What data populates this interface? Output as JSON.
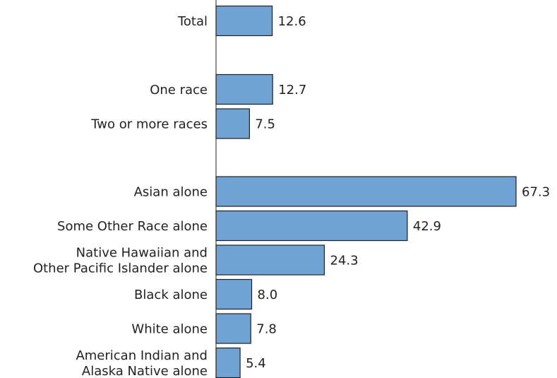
{
  "colors": {
    "bar_fill": "#6fa3d4",
    "bar_stroke": "#231f20",
    "text": "#231f20"
  },
  "chart_data": {
    "type": "bar",
    "orientation": "horizontal",
    "title": "",
    "xlabel": "",
    "ylabel": "",
    "xlim": [
      0,
      67.3
    ],
    "grid": false,
    "value_labels": true,
    "categories": [
      [
        "Total"
      ],
      [
        "One race"
      ],
      [
        "Two or more races"
      ],
      [
        "Asian alone"
      ],
      [
        "Some Other Race alone"
      ],
      [
        "Native Hawaiian and",
        "Other Pacific Islander alone"
      ],
      [
        "Black alone"
      ],
      [
        "White alone"
      ],
      [
        "American Indian and",
        "Alaska Native alone"
      ]
    ],
    "values": [
      12.6,
      12.7,
      7.5,
      67.3,
      42.9,
      24.3,
      8.0,
      7.8,
      5.4
    ],
    "value_labels_text": [
      "12.6",
      "12.7",
      "7.5",
      "67.3",
      "42.9",
      "24.3",
      "8.0",
      "7.8",
      "5.4"
    ],
    "groups": [
      [
        0
      ],
      [
        1,
        2
      ],
      [
        3,
        4,
        5,
        6,
        7,
        8
      ]
    ]
  }
}
